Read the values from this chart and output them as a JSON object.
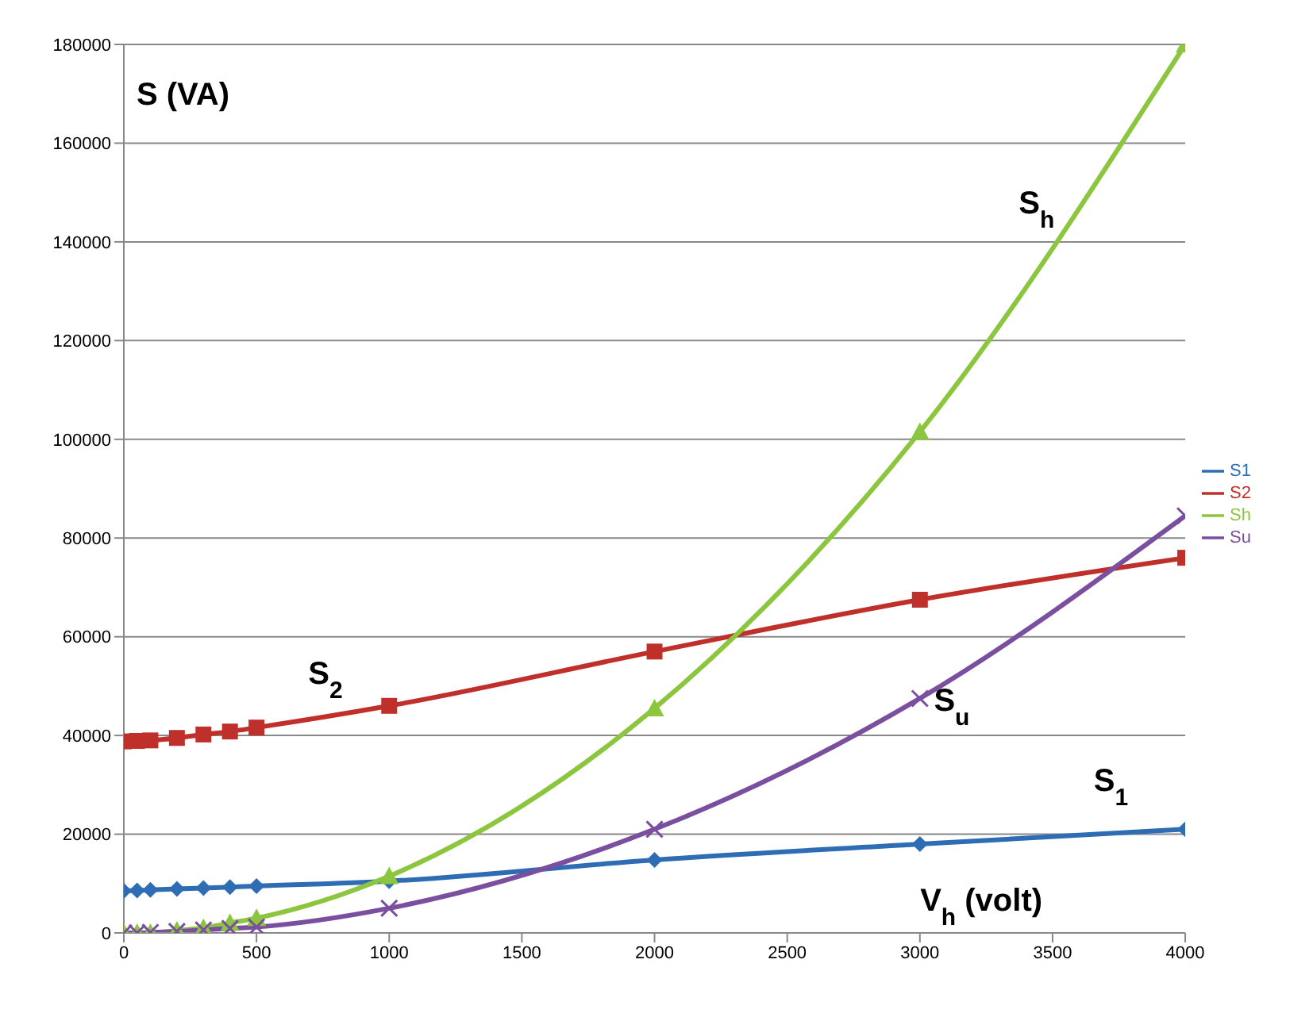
{
  "chart_data": {
    "type": "line",
    "xlabel": "V$_{h}$ (volt)",
    "ylabel": "S (VA)",
    "x": [
      0,
      50,
      100,
      200,
      300,
      400,
      500,
      1000,
      2000,
      3000,
      4000
    ],
    "series": [
      {
        "name": "S1",
        "color": "#2e6db4",
        "marker": "diamond",
        "values": [
          8500,
          8600,
          8700,
          8900,
          9100,
          9300,
          9500,
          10500,
          14800,
          18000,
          21000
        ]
      },
      {
        "name": "S2",
        "color": "#c0302b",
        "marker": "square",
        "values": [
          38800,
          38900,
          39000,
          39500,
          40200,
          40800,
          41600,
          46000,
          57000,
          67500,
          76000
        ]
      },
      {
        "name": "Sh",
        "color": "#8cc63f",
        "marker": "triangle",
        "values": [
          0,
          0,
          0,
          500,
          1000,
          2000,
          3000,
          11500,
          45500,
          101500,
          180000
        ]
      },
      {
        "name": "Su",
        "color": "#7b4fa0",
        "marker": "cross",
        "values": [
          0,
          0,
          100,
          300,
          600,
          900,
          1200,
          5000,
          21000,
          47500,
          84500
        ]
      }
    ],
    "annotations": [
      "S$_{2}$",
      "S$_{u}$",
      "S$_{1}$",
      "S$_{h}$"
    ],
    "xlim": [
      0,
      4000
    ],
    "xticks": [
      0,
      500,
      1000,
      1500,
      2000,
      2500,
      3000,
      3500,
      4000
    ],
    "ylim": [
      0,
      180000
    ],
    "yticks": [
      0,
      20000,
      40000,
      60000,
      80000,
      100000,
      120000,
      140000,
      160000,
      180000
    ],
    "grid": "y",
    "legend": "right",
    "line_style": "solid"
  }
}
